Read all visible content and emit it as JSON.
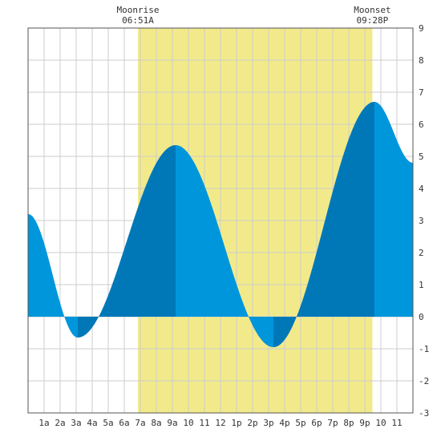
{
  "chart_data": {
    "type": "area",
    "title": "",
    "xlabel": "",
    "ylabel": "",
    "xlim": [
      0,
      24
    ],
    "ylim": [
      -3,
      9
    ],
    "grid": true,
    "x_tick_labels": [
      "1a",
      "2a",
      "3a",
      "4a",
      "5a",
      "6a",
      "7a",
      "8a",
      "9a",
      "10",
      "11",
      "12",
      "1p",
      "2p",
      "3p",
      "4p",
      "5p",
      "6p",
      "7p",
      "8p",
      "9p",
      "10",
      "11"
    ],
    "y_tick_labels": [
      "-3",
      "-2",
      "-1",
      "0",
      "1",
      "2",
      "3",
      "4",
      "5",
      "6",
      "7",
      "8",
      "9"
    ],
    "moon": {
      "moonrise_label": "Moonrise",
      "moonrise_time": "06:51A",
      "moonrise_hour": 6.85,
      "moonset_label": "Moonset",
      "moonset_time": "09:28P",
      "moonset_hour": 21.47
    },
    "tide_extremes": [
      {
        "x": 0.0,
        "y": 3.2
      },
      {
        "x": 3.1,
        "y": -0.65
      },
      {
        "x": 9.2,
        "y": 5.35
      },
      {
        "x": 15.3,
        "y": -0.95
      },
      {
        "x": 21.6,
        "y": 6.7
      },
      {
        "x": 24.0,
        "y": 4.8
      }
    ],
    "colors": {
      "tide_light": "#0096dc",
      "tide_dark": "#0078b8",
      "moon_band": "#f2ea8a",
      "grid": "#cccccc",
      "axis": "#555555",
      "background": "#ffffff"
    }
  }
}
